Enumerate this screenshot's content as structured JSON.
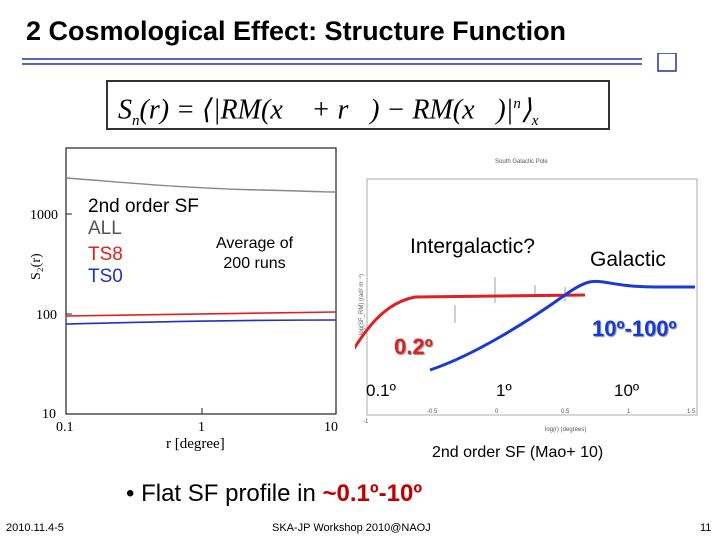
{
  "title": "2 Cosmological Effect: Structure Function",
  "formula": {
    "S": "S",
    "n": "n",
    "lhs_arg": "(r) = ⟨|RM(",
    "x1": "x⃗",
    "plus": " + ",
    "r": "r⃗",
    "mid": ") − RM(",
    "x2": "x⃗",
    "close": ")|",
    "power": "n",
    "rangle": "⟩",
    "sub_x": "x⃗"
  },
  "left_plot": {
    "ylabel": "S₂(r)",
    "xlabel": "r [degree]",
    "y_ticks": [
      "1000",
      "100",
      "10"
    ],
    "x_ticks": [
      "0.1",
      "1",
      "10"
    ],
    "legend_title": "2nd order SF",
    "legend_all": "ALL",
    "legend_ts8": "TS8",
    "legend_ts0": "TS0",
    "note_line1": "Average of",
    "note_line2": "200 runs"
  },
  "right_plot": {
    "inner_title": "South Galactic Pole",
    "inner_xlabel": "log(r) (degrees)",
    "inner_ylabel": "log(SF_RM) (rad² m⁻⁴)",
    "inner_x_ticks": [
      "-1",
      "-0.5",
      "0",
      "0.5",
      "1",
      "1.5"
    ],
    "intergalactic": "Intergalactic?",
    "galactic": "Galactic",
    "range_big": "10º-100º",
    "range_small": "0.2º",
    "tick_01": "0.1º",
    "tick_1": "1º",
    "tick_10": "10º",
    "caption": "2nd order SF (Mao+ 10)"
  },
  "bullet": {
    "prefix": "Flat SF profile in ",
    "highlight": "~0.1º-10º"
  },
  "footer": {
    "date": "2010.11.4-5",
    "center": "SKA-JP Workshop 2010@NAOJ",
    "page": "11"
  },
  "colors": {
    "red": "#e02020",
    "blue": "#1a3ad8",
    "title_rule": "#2030a0"
  }
}
